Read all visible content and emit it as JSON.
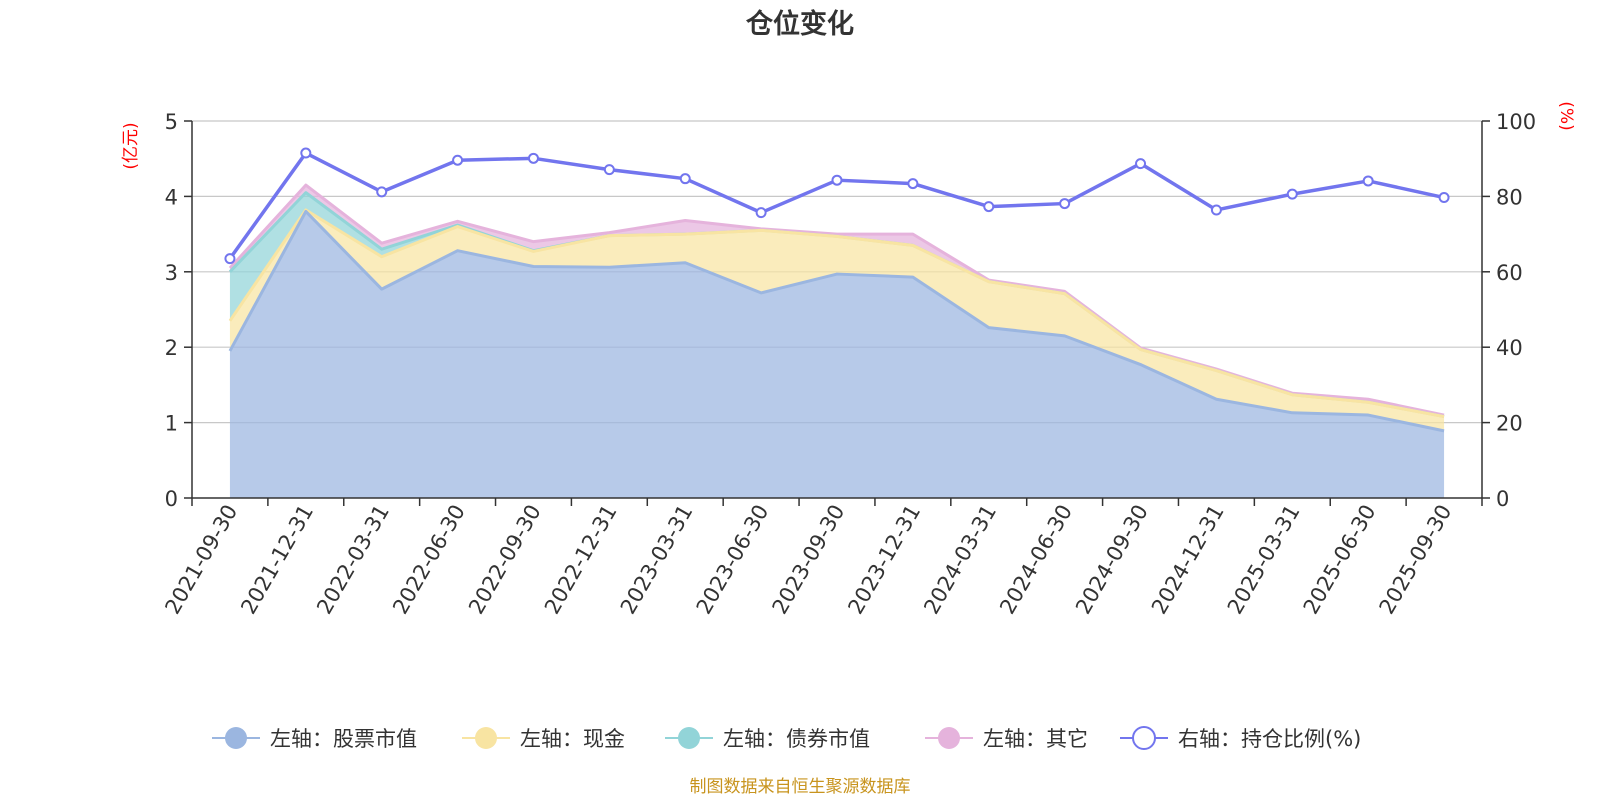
{
  "chart_data": {
    "type": "area",
    "title": "仓位变化",
    "categories": [
      "2021-09-30",
      "2021-12-31",
      "2022-03-31",
      "2022-06-30",
      "2022-09-30",
      "2022-12-31",
      "2023-03-31",
      "2023-06-30",
      "2023-09-30",
      "2023-12-31",
      "2024-03-31",
      "2024-06-30",
      "2024-09-30",
      "2024-12-31",
      "2025-03-31",
      "2025-06-30",
      "2025-09-30"
    ],
    "left_axis": {
      "unit_label": "(亿元)",
      "ylim": [
        0,
        5
      ],
      "ticks": [
        "0",
        "1",
        "2",
        "3",
        "4",
        "5"
      ]
    },
    "right_axis": {
      "unit_label": "(%)",
      "ylim": [
        0,
        100
      ],
      "ticks": [
        "0",
        "20",
        "40",
        "60",
        "80",
        "100"
      ]
    },
    "series": [
      {
        "name": "左轴：股票市值",
        "axis": "left",
        "stack": true,
        "color": "#9bb6e0",
        "values": [
          1.95,
          3.8,
          2.77,
          3.28,
          3.07,
          3.06,
          3.12,
          2.72,
          2.97,
          2.93,
          2.26,
          2.15,
          1.77,
          1.31,
          1.13,
          1.1,
          0.89
        ]
      },
      {
        "name": "左轴：现金",
        "axis": "left",
        "stack": true,
        "color": "#f8e4a2",
        "values": [
          0.4,
          0.02,
          0.43,
          0.32,
          0.2,
          0.42,
          0.38,
          0.83,
          0.5,
          0.42,
          0.61,
          0.56,
          0.2,
          0.38,
          0.24,
          0.17,
          0.19
        ]
      },
      {
        "name": "左轴：债券市值",
        "axis": "left",
        "stack": true,
        "color": "#92d4d8",
        "values": [
          0.65,
          0.23,
          0.1,
          0.02,
          0.01,
          0.0,
          0.0,
          0.0,
          0.0,
          0.0,
          0.0,
          0.0,
          0.0,
          0.0,
          0.0,
          0.0,
          0.0
        ]
      },
      {
        "name": "左轴：其它",
        "axis": "left",
        "stack": true,
        "color": "#e5b3dc",
        "values": [
          0.05,
          0.1,
          0.08,
          0.05,
          0.12,
          0.04,
          0.18,
          0.02,
          0.03,
          0.15,
          0.02,
          0.03,
          0.02,
          0.02,
          0.02,
          0.04,
          0.02
        ]
      },
      {
        "name": "右轴：持仓比例(%)",
        "axis": "right",
        "type": "line",
        "color": "#7275ee",
        "values": [
          63.5,
          91.5,
          81.2,
          89.6,
          90.1,
          87.1,
          84.7,
          75.7,
          84.3,
          83.4,
          77.3,
          78.1,
          88.7,
          76.4,
          80.6,
          84.1,
          79.7
        ]
      }
    ],
    "legend_position": "bottom"
  },
  "source_note": "制图数据来自恒生聚源数据库"
}
